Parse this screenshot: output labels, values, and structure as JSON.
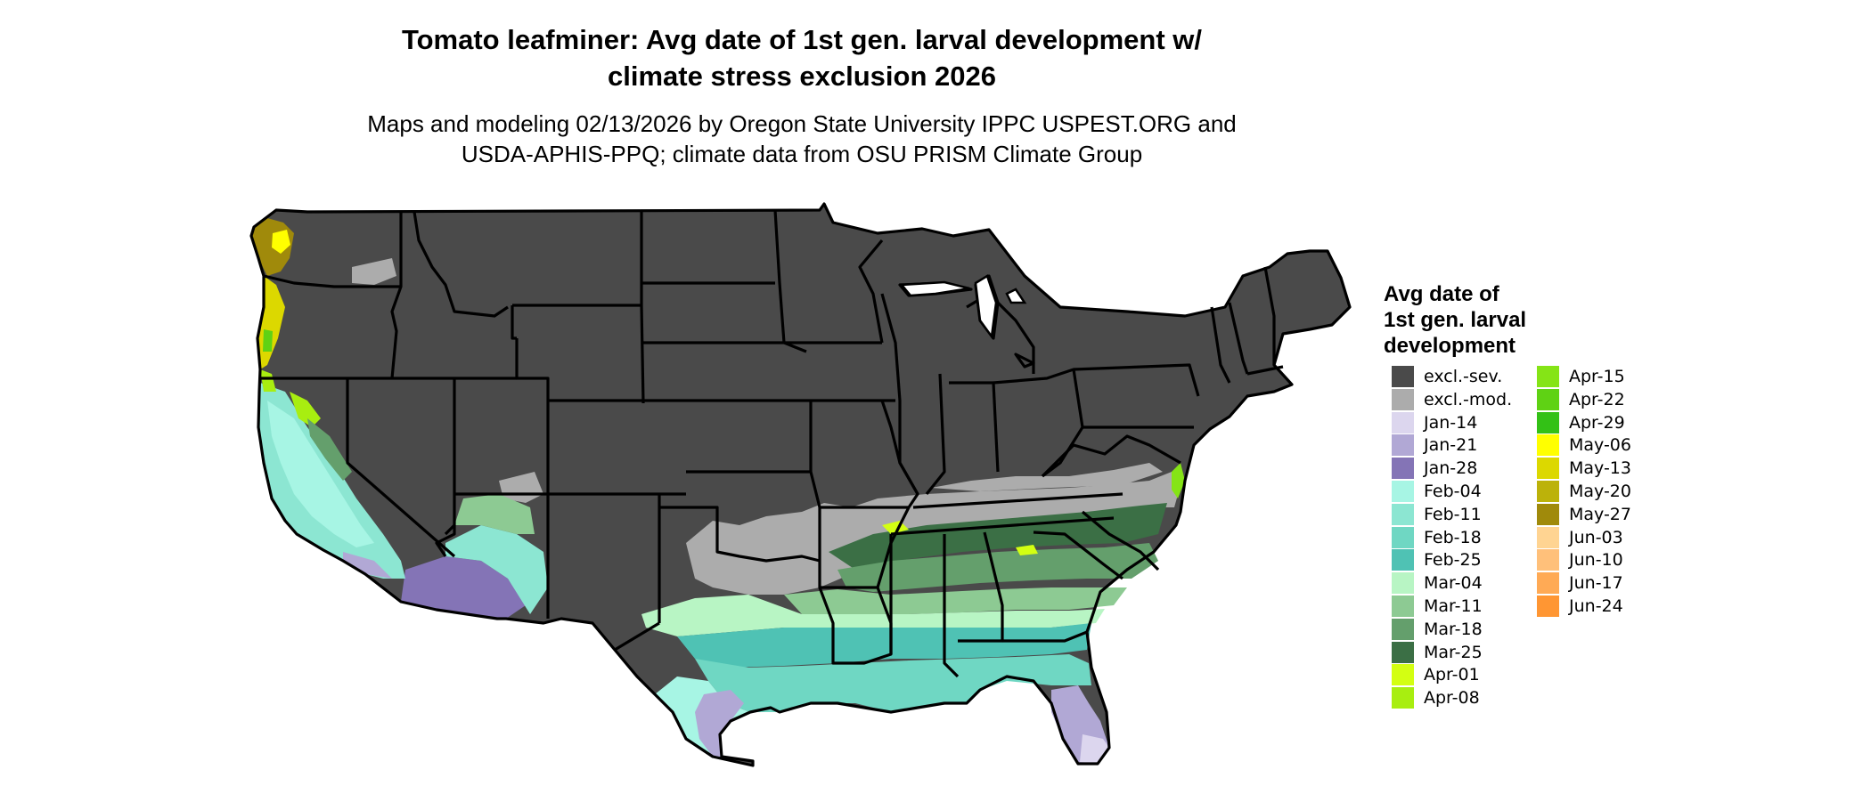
{
  "title_line1": "Tomato leafminer: Avg date of 1st gen. larval development w/",
  "title_line2": "climate stress exclusion 2026",
  "subtitle_line1": "Maps and modeling 02/13/2026 by Oregon State University IPPC USPEST.ORG and",
  "subtitle_line2": "USDA-APHIS-PPQ; climate data from OSU PRISM Climate Group",
  "legend": {
    "title_line1": "Avg date of",
    "title_line2": "1st gen. larval",
    "title_line3": "development",
    "items": [
      {
        "label": "excl.-sev.",
        "color": "#4a4a4a"
      },
      {
        "label": "excl.-mod.",
        "color": "#acacac"
      },
      {
        "label": "Jan-14",
        "color": "#dcd6ee"
      },
      {
        "label": "Jan-21",
        "color": "#b1a8d5"
      },
      {
        "label": "Jan-28",
        "color": "#8474b6"
      },
      {
        "label": "Feb-04",
        "color": "#a7f5e4"
      },
      {
        "label": "Feb-11",
        "color": "#8ce6d2"
      },
      {
        "label": "Feb-18",
        "color": "#6fd7c3"
      },
      {
        "label": "Feb-25",
        "color": "#4fc2b4"
      },
      {
        "label": "Mar-04",
        "color": "#b8f5c4"
      },
      {
        "label": "Mar-11",
        "color": "#8dca93"
      },
      {
        "label": "Mar-18",
        "color": "#649f6c"
      },
      {
        "label": "Mar-25",
        "color": "#3b6f45"
      },
      {
        "label": "Apr-01",
        "color": "#d3ff12"
      },
      {
        "label": "Apr-08",
        "color": "#a8ee10"
      },
      {
        "label": "Apr-15",
        "color": "#85e416"
      },
      {
        "label": "Apr-22",
        "color": "#5fd214"
      },
      {
        "label": "Apr-29",
        "color": "#33c116"
      },
      {
        "label": "May-06",
        "color": "#ffff00"
      },
      {
        "label": "May-13",
        "color": "#dcd800"
      },
      {
        "label": "May-20",
        "color": "#bcb20a"
      },
      {
        "label": "May-27",
        "color": "#a08a0b"
      },
      {
        "label": "Jun-03",
        "color": "#ffd492"
      },
      {
        "label": "Jun-10",
        "color": "#ffc07a"
      },
      {
        "label": "Jun-17",
        "color": "#ffaa55"
      },
      {
        "label": "Jun-24",
        "color": "#ff9633"
      }
    ]
  },
  "colors": {
    "excluded_severe": "#4a4a4a",
    "excluded_moderate": "#acacac",
    "state_border": "#000000"
  }
}
